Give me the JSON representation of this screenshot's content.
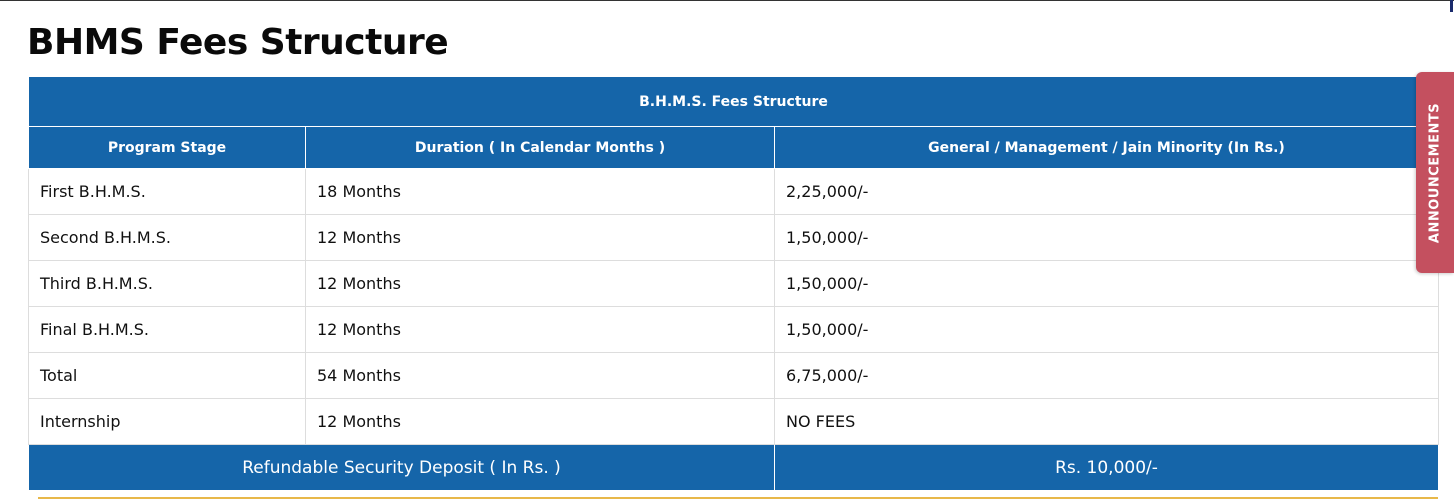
{
  "page": {
    "title": "BHMS Fees Structure"
  },
  "table": {
    "caption": "B.H.M.S. Fees Structure",
    "headers": [
      "Program Stage",
      "Duration ( In Calendar Months )",
      "General / Management / Jain Minority (In Rs.)"
    ],
    "rows": [
      [
        "First B.H.M.S.",
        "18 Months",
        "2,25,000/-"
      ],
      [
        "Second B.H.M.S.",
        "12 Months",
        "1,50,000/-"
      ],
      [
        "Third B.H.M.S.",
        "12 Months",
        "1,50,000/-"
      ],
      [
        "Final B.H.M.S.",
        "12 Months",
        "1,50,000/-"
      ],
      [
        "Total",
        "54 Months",
        "6,75,000/-"
      ],
      [
        "Internship",
        "12 Months",
        "NO FEES"
      ]
    ],
    "deposit": {
      "label": "Refundable Security Deposit ( In Rs. )",
      "value": "Rs. 10,000/-"
    }
  },
  "announcements": {
    "label": "ANNOUNCEMENTS"
  },
  "colors": {
    "header_blue": "#1565a9",
    "announce_red": "#c4505f",
    "accent_gold": "#e8b84a"
  }
}
